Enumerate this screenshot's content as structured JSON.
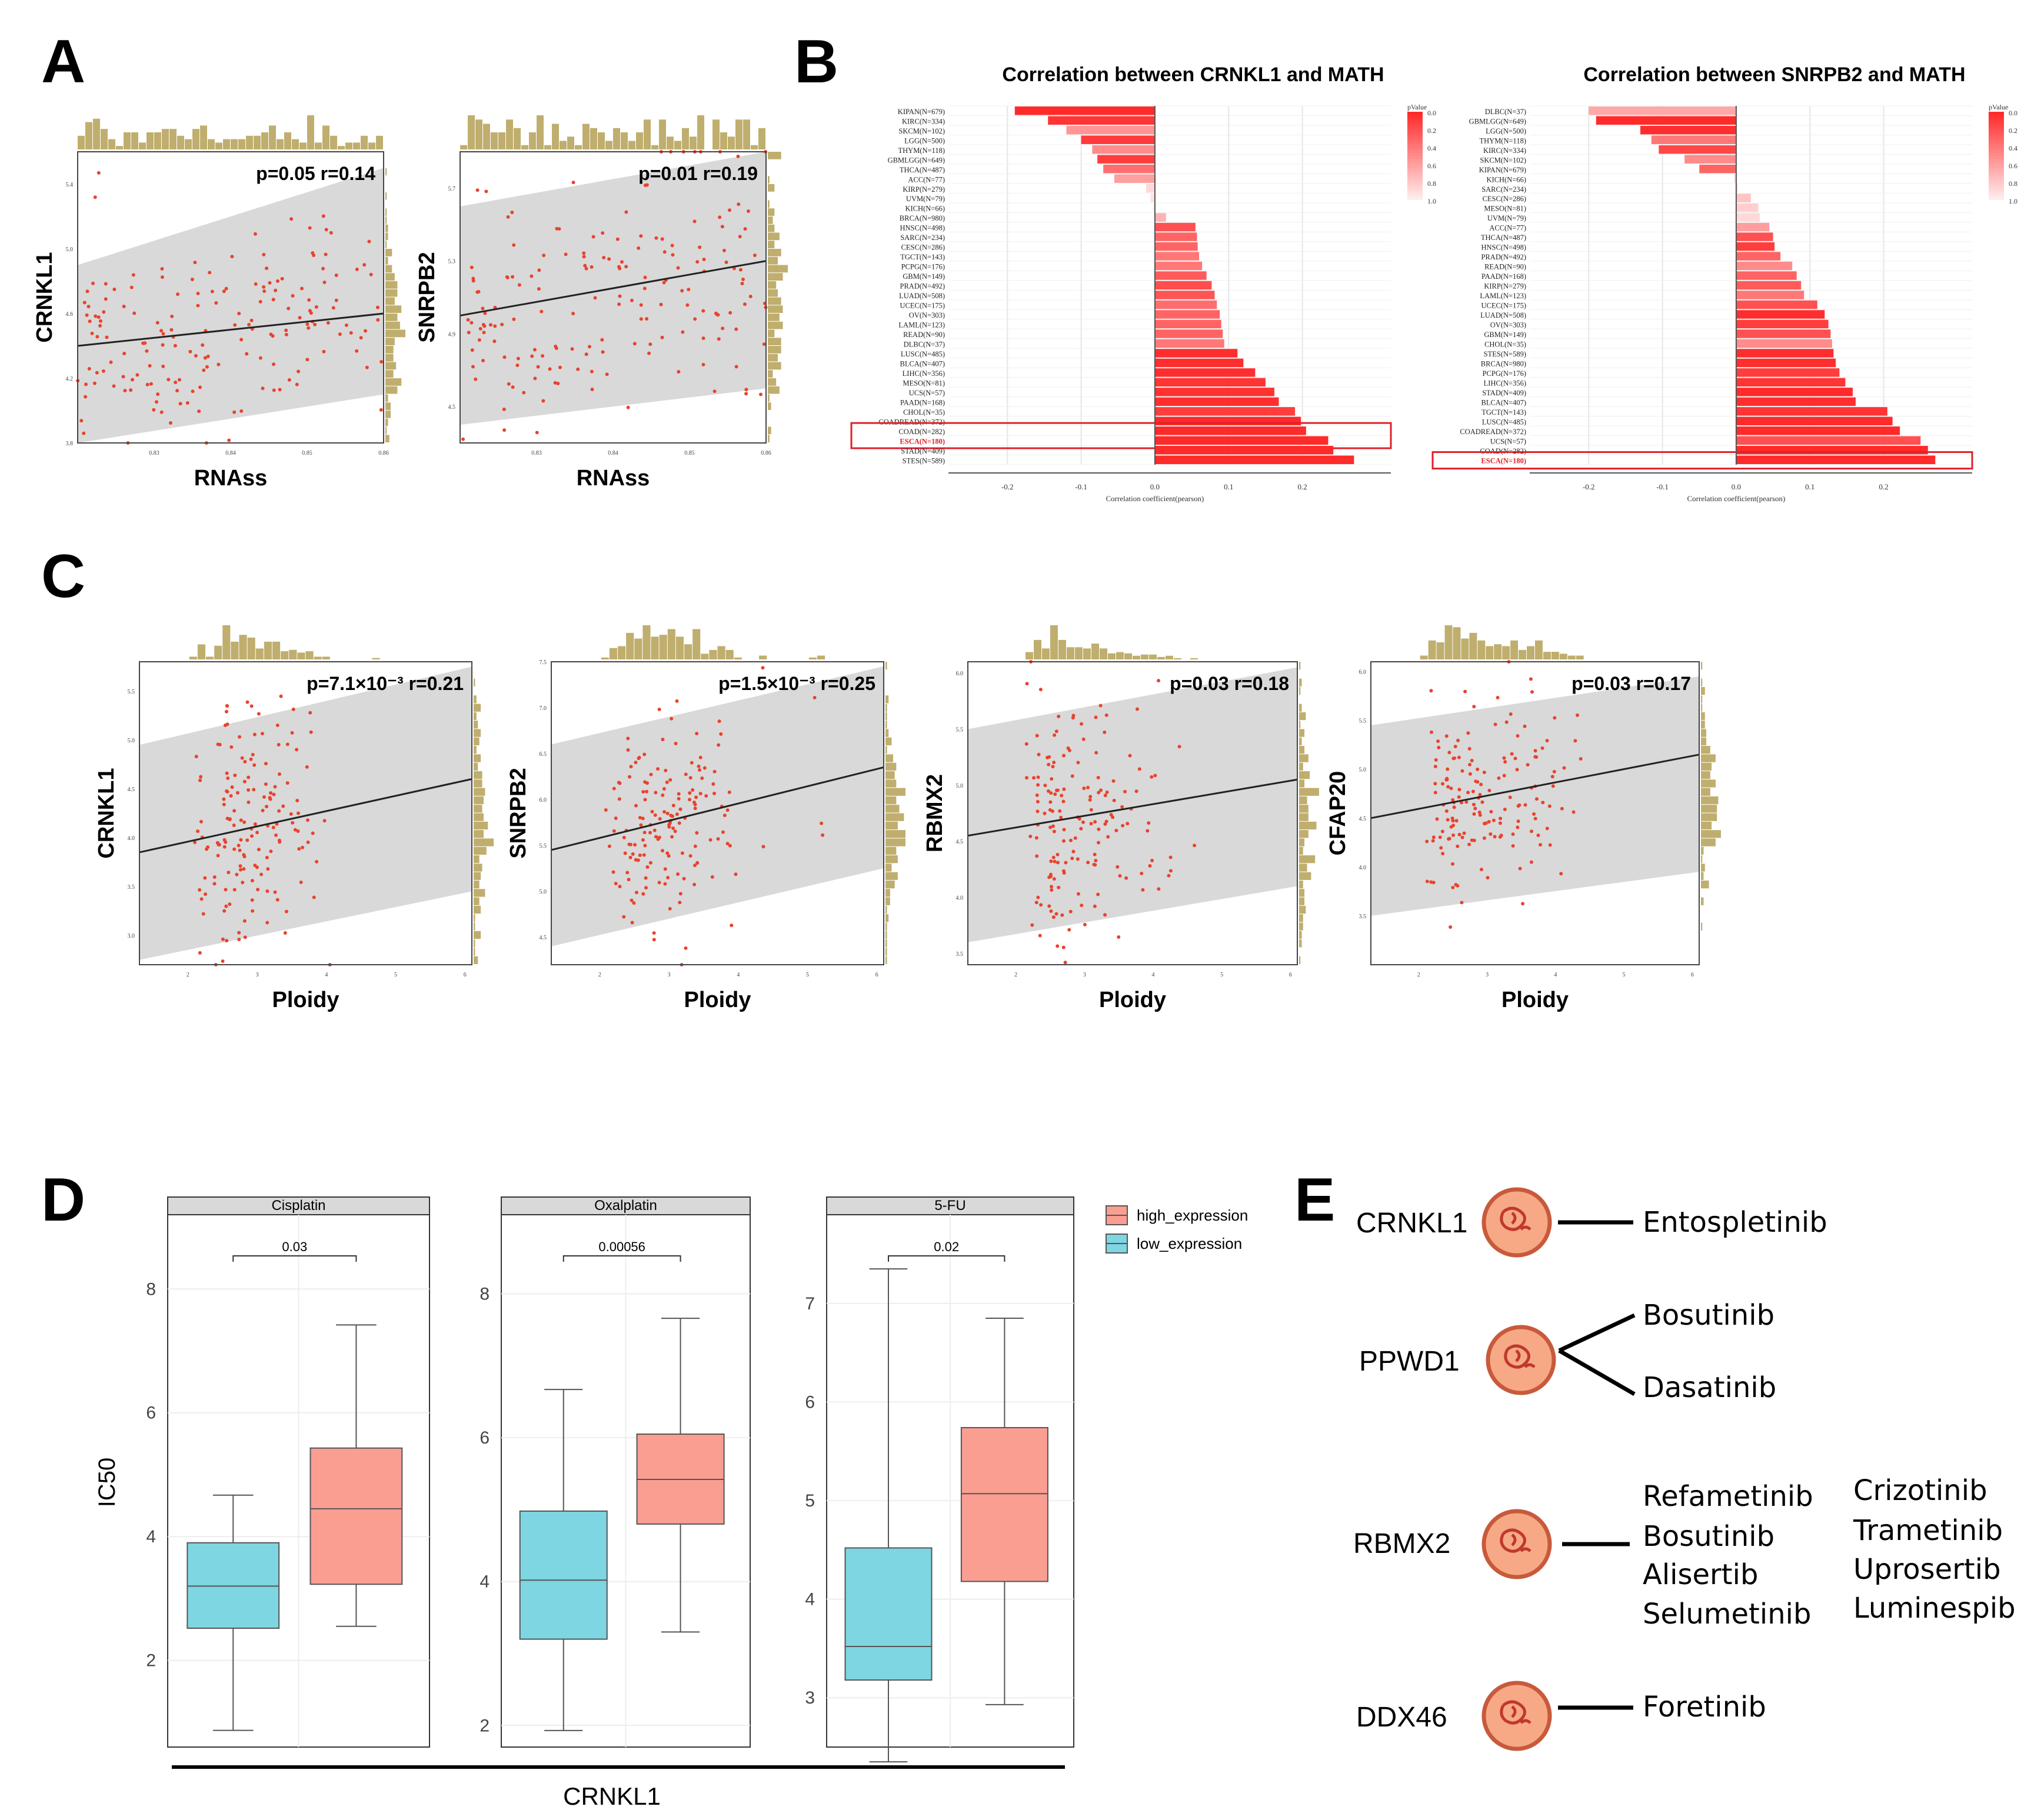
{
  "panels": {
    "a": "A",
    "b": "B",
    "c": "C",
    "d": "D",
    "e": "E"
  },
  "colors": {
    "point": "#e8432e",
    "hist": "#bfae6e",
    "band": "#d9d9d9",
    "fit": "#222222",
    "bar_strong": "#ff2a2a",
    "bar_weak": "#ffc9c9",
    "box_high": "#fa9e92",
    "box_low": "#7dd6e2",
    "highlight_box": "#e0202a",
    "circle_fill": "#f7a986",
    "circle_stroke": "#c85a3c"
  },
  "chart_data": [
    {
      "id": "A1",
      "type": "scatter",
      "title": "",
      "xlabel": "RNAss",
      "ylabel": "CRNKL1",
      "annotation": "p=0.05 r=0.14",
      "r": 0.14,
      "p": 0.05,
      "xlim": [
        0.82,
        0.86
      ],
      "ylim": [
        3.8,
        5.6
      ],
      "xticks": [
        "0.83",
        "0.84",
        "0.85",
        "0.86"
      ],
      "yticks": [
        "3.8",
        "4.2",
        "4.6",
        "5.0",
        "5.4"
      ],
      "fit": [
        [
          0.82,
          4.4
        ],
        [
          0.86,
          4.6
        ]
      ],
      "band": [
        [
          0.82,
          4.9,
          3.8
        ],
        [
          0.86,
          5.5,
          4.1
        ]
      ]
    },
    {
      "id": "A2",
      "type": "scatter",
      "title": "",
      "xlabel": "RNAss",
      "ylabel": "SNRPB2",
      "annotation": "p=0.01 r=0.19",
      "r": 0.19,
      "p": 0.01,
      "xlim": [
        0.82,
        0.86
      ],
      "ylim": [
        4.3,
        5.9
      ],
      "xticks": [
        "0.83",
        "0.84",
        "0.85",
        "0.86"
      ],
      "yticks": [
        "4.5",
        "4.9",
        "5.3",
        "5.7"
      ],
      "fit": [
        [
          0.82,
          5.0
        ],
        [
          0.86,
          5.3
        ]
      ],
      "band": [
        [
          0.82,
          5.6,
          4.4
        ],
        [
          0.86,
          5.9,
          4.6
        ]
      ]
    },
    {
      "id": "B1",
      "type": "bar",
      "title": "Correlation between CRNKL1 and MATH",
      "xlabel": "Correlation coefficient(pearson)",
      "legend_title": "pValue",
      "legend_ticks": [
        "0.0",
        "0.2",
        "0.4",
        "0.6",
        "0.8",
        "1.0"
      ],
      "xticks": [
        "-0.2",
        "-0.1",
        "0.0",
        "0.1",
        "0.2"
      ],
      "xlim": [
        -0.28,
        0.32
      ],
      "highlight": "ESCA(N=180)",
      "categories": [
        "KIPAN(N=679)",
        "KIRC(N=334)",
        "SKCM(N=102)",
        "LGG(N=500)",
        "THYM(N=118)",
        "GBMLGG(N=649)",
        "THCA(N=487)",
        "ACC(N=77)",
        "KIRP(N=279)",
        "UVM(N=79)",
        "KICH(N=66)",
        "BRCA(N=980)",
        "HNSC(N=498)",
        "SARC(N=234)",
        "CESC(N=286)",
        "TGCT(N=143)",
        "PCPG(N=176)",
        "GBM(N=149)",
        "PRAD(N=492)",
        "LUAD(N=508)",
        "UCEC(N=175)",
        "OV(N=303)",
        "LAML(N=123)",
        "READ(N=90)",
        "DLBC(N=37)",
        "LUSC(N=485)",
        "BLCA(N=407)",
        "LIHC(N=356)",
        "MESO(N=81)",
        "UCS(N=57)",
        "PAAD(N=168)",
        "CHOL(N=35)",
        "COADREAD(N=372)",
        "COAD(N=282)",
        "ESCA(N=180)",
        "STAD(N=409)",
        "STES(N=589)"
      ],
      "values": [
        -0.19,
        -0.145,
        -0.12,
        -0.1,
        -0.085,
        -0.078,
        -0.07,
        -0.055,
        -0.012,
        -0.006,
        -0.002,
        0.015,
        0.055,
        0.057,
        0.058,
        0.06,
        0.064,
        0.07,
        0.077,
        0.081,
        0.084,
        0.088,
        0.09,
        0.092,
        0.094,
        0.112,
        0.12,
        0.136,
        0.15,
        0.162,
        0.168,
        0.19,
        0.198,
        0.205,
        0.235,
        0.242,
        0.27
      ],
      "pvalues": [
        0.0,
        0.05,
        0.55,
        0.08,
        0.5,
        0.1,
        0.35,
        0.6,
        0.9,
        0.95,
        0.98,
        0.7,
        0.2,
        0.3,
        0.3,
        0.4,
        0.4,
        0.25,
        0.18,
        0.22,
        0.35,
        0.3,
        0.3,
        0.3,
        0.4,
        0.02,
        0.02,
        0.02,
        0.05,
        0.04,
        0.02,
        0.1,
        0.0,
        0.0,
        0.0,
        0.0,
        0.0
      ]
    },
    {
      "id": "B2",
      "type": "bar",
      "title": "Correlation between SNRPB2 and MATH",
      "xlabel": "Correlation coefficient(pearson)",
      "legend_title": "pValue",
      "legend_ticks": [
        "0.0",
        "0.2",
        "0.4",
        "0.6",
        "0.8",
        "1.0"
      ],
      "xticks": [
        "-0.2",
        "-0.1",
        "0.0",
        "0.1",
        "0.2"
      ],
      "xlim": [
        -0.28,
        0.32
      ],
      "highlight": "ESCA(N=180)",
      "categories": [
        "DLBC(N=37)",
        "GBMLGG(N=649)",
        "LGG(N=500)",
        "THYM(N=118)",
        "KIRC(N=334)",
        "SKCM(N=102)",
        "KIPAN(N=679)",
        "KICH(N=66)",
        "SARC(N=234)",
        "CESC(N=286)",
        "MESO(N=81)",
        "UVM(N=79)",
        "ACC(N=77)",
        "THCA(N=487)",
        "HNSC(N=498)",
        "PRAD(N=492)",
        "READ(N=90)",
        "PAAD(N=168)",
        "KIRP(N=279)",
        "LAML(N=123)",
        "UCEC(N=175)",
        "LUAD(N=508)",
        "OV(N=303)",
        "GBM(N=149)",
        "CHOL(N=35)",
        "STES(N=589)",
        "BRCA(N=980)",
        "PCPG(N=176)",
        "LIHC(N=356)",
        "STAD(N=409)",
        "BLCA(N=407)",
        "TGCT(N=143)",
        "LUSC(N=485)",
        "COADREAD(N=372)",
        "UCS(N=57)",
        "COAD(N=282)",
        "ESCA(N=180)"
      ],
      "values": [
        -0.2,
        -0.19,
        -0.13,
        -0.115,
        -0.105,
        -0.07,
        -0.05,
        -0.003,
        0.002,
        0.02,
        0.03,
        0.032,
        0.045,
        0.05,
        0.052,
        0.06,
        0.076,
        0.082,
        0.088,
        0.092,
        0.11,
        0.12,
        0.125,
        0.128,
        0.13,
        0.132,
        0.135,
        0.14,
        0.148,
        0.158,
        0.162,
        0.205,
        0.212,
        0.222,
        0.25,
        0.26,
        0.27
      ],
      "pvalues": [
        0.65,
        0.0,
        0.02,
        0.4,
        0.15,
        0.5,
        0.3,
        0.95,
        0.95,
        0.8,
        0.85,
        0.9,
        0.6,
        0.2,
        0.1,
        0.3,
        0.5,
        0.3,
        0.25,
        0.4,
        0.2,
        0.02,
        0.1,
        0.2,
        0.5,
        0.02,
        0.02,
        0.1,
        0.05,
        0.0,
        0.02,
        0.05,
        0.0,
        0.0,
        0.2,
        0.0,
        0.0
      ]
    },
    {
      "id": "C1",
      "type": "scatter",
      "xlabel": "Ploidy",
      "ylabel": "CRNKL1",
      "annotation": "p=7.1×10⁻³ r=0.21",
      "r": 0.21,
      "xlim": [
        1.3,
        6.1
      ],
      "ylim": [
        2.7,
        5.8
      ],
      "xticks": [
        "2",
        "3",
        "4",
        "5",
        "6"
      ],
      "yticks": [
        "3.0",
        "3.5",
        "4.0",
        "4.5",
        "5.0",
        "5.5"
      ],
      "fit": [
        [
          1.3,
          3.85
        ],
        [
          6.1,
          4.6
        ]
      ],
      "band": [
        [
          1.3,
          4.95,
          2.75
        ],
        [
          6.1,
          5.75,
          3.45
        ]
      ]
    },
    {
      "id": "C2",
      "type": "scatter",
      "xlabel": "Ploidy",
      "ylabel": "SNRPB2",
      "annotation": "p=1.5×10⁻³ r=0.25",
      "r": 0.25,
      "xlim": [
        1.3,
        6.1
      ],
      "ylim": [
        4.2,
        7.5
      ],
      "xticks": [
        "2",
        "3",
        "4",
        "5",
        "6"
      ],
      "yticks": [
        "4.5",
        "5.0",
        "5.5",
        "6.0",
        "6.5",
        "7.0",
        "7.5"
      ],
      "fit": [
        [
          1.3,
          5.45
        ],
        [
          6.1,
          6.35
        ]
      ],
      "band": [
        [
          1.3,
          6.6,
          4.4
        ],
        [
          6.1,
          7.45,
          5.25
        ]
      ]
    },
    {
      "id": "C3",
      "type": "scatter",
      "xlabel": "Ploidy",
      "ylabel": "RBMX2",
      "annotation": "p=0.03 r=0.18",
      "r": 0.18,
      "xlim": [
        1.3,
        6.1
      ],
      "ylim": [
        3.4,
        6.1
      ],
      "xticks": [
        "2",
        "3",
        "4",
        "5",
        "6"
      ],
      "yticks": [
        "3.5",
        "4.0",
        "4.5",
        "5.0",
        "5.5",
        "6.0"
      ],
      "fit": [
        [
          1.3,
          4.55
        ],
        [
          6.1,
          5.05
        ]
      ],
      "band": [
        [
          1.3,
          5.5,
          3.6
        ],
        [
          6.1,
          6.05,
          4.1
        ]
      ]
    },
    {
      "id": "C4",
      "type": "scatter",
      "xlabel": "Ploidy",
      "ylabel": "CFAP20",
      "annotation": "p=0.03 r=0.17",
      "r": 0.17,
      "xlim": [
        1.3,
        6.1
      ],
      "ylim": [
        3.0,
        6.1
      ],
      "xticks": [
        "2",
        "3",
        "4",
        "5",
        "6"
      ],
      "yticks": [
        "3.5",
        "4.0",
        "4.5",
        "5.0",
        "5.5",
        "6.0"
      ],
      "fit": [
        [
          1.3,
          4.5
        ],
        [
          6.1,
          5.15
        ]
      ],
      "band": [
        [
          1.3,
          5.45,
          3.5
        ],
        [
          6.1,
          5.95,
          3.95
        ]
      ]
    },
    {
      "id": "D",
      "type": "box",
      "ylabel": "IC50",
      "xlabel": "CRNKL1",
      "legend": [
        "high_expression",
        "low_expression"
      ],
      "facets": [
        {
          "name": "Cisplatin",
          "p": "0.03",
          "ylim": [
            0.6,
            9.2
          ],
          "yticks": [
            "2",
            "4",
            "6",
            "8"
          ],
          "low": {
            "min": 0.87,
            "q1": 2.52,
            "median": 3.2,
            "q3": 3.9,
            "max": 4.67
          },
          "high": {
            "min": 2.55,
            "q1": 3.23,
            "median": 4.45,
            "q3": 5.43,
            "max": 7.42
          }
        },
        {
          "name": "Oxalplatin",
          "p": "0.00056",
          "ylim": [
            1.7,
            9.1
          ],
          "yticks": [
            "2",
            "4",
            "6",
            "8"
          ],
          "low": {
            "min": 1.93,
            "q1": 3.2,
            "median": 4.02,
            "q3": 4.98,
            "max": 6.67
          },
          "high": {
            "min": 3.3,
            "q1": 4.8,
            "median": 5.42,
            "q3": 6.05,
            "max": 7.66
          }
        },
        {
          "name": "5-FU",
          "p": "0.02",
          "ylim": [
            2.5,
            7.9
          ],
          "yticks": [
            "3",
            "4",
            "5",
            "6",
            "7"
          ],
          "low": {
            "min": 2.35,
            "q1": 3.18,
            "median": 3.52,
            "q3": 4.52,
            "max": 7.35
          },
          "high": {
            "min": 2.93,
            "q1": 4.18,
            "median": 5.07,
            "q3": 5.74,
            "max": 6.85
          }
        }
      ]
    }
  ],
  "e": {
    "genes": [
      "CRNKL1",
      "PPWD1",
      "RBMX2",
      "DDX46"
    ],
    "drugs": {
      "crnkl1": [
        "Entospletinib"
      ],
      "ppwd1": [
        "Bosutinib",
        "Dasatinib"
      ],
      "rbmx2_col1": [
        "Refametinib",
        "Bosutinib",
        "Alisertib",
        "Selumetinib"
      ],
      "rbmx2_col2": [
        "Crizotinib",
        "Trametinib",
        "Uprosertib",
        "Luminespib"
      ],
      "ddx46": [
        "Foretinib"
      ]
    }
  }
}
